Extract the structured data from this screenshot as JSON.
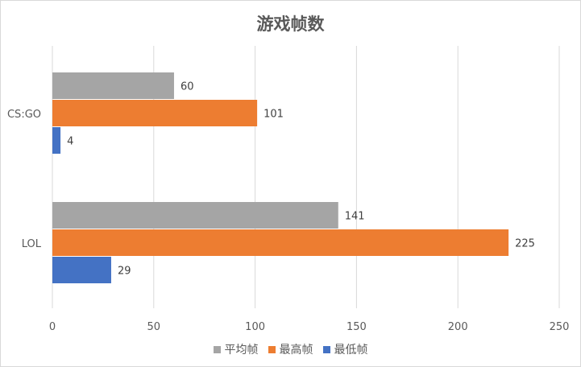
{
  "chart_data": {
    "type": "bar",
    "orientation": "horizontal",
    "title": "游戏帧数",
    "categories": [
      "CS:GO",
      "LOL"
    ],
    "series": [
      {
        "name": "平均帧",
        "values": [
          60,
          141
        ],
        "color": "#a5a5a5"
      },
      {
        "name": "最高帧",
        "values": [
          101,
          225
        ],
        "color": "#ed7d31"
      },
      {
        "name": "最低帧",
        "values": [
          4,
          29
        ],
        "color": "#4472c4"
      }
    ],
    "xlim": [
      0,
      250
    ],
    "xticks": [
      "0",
      "50",
      "100",
      "150",
      "200",
      "250"
    ],
    "grid": true,
    "legend": "bottom",
    "data_labels": true
  }
}
